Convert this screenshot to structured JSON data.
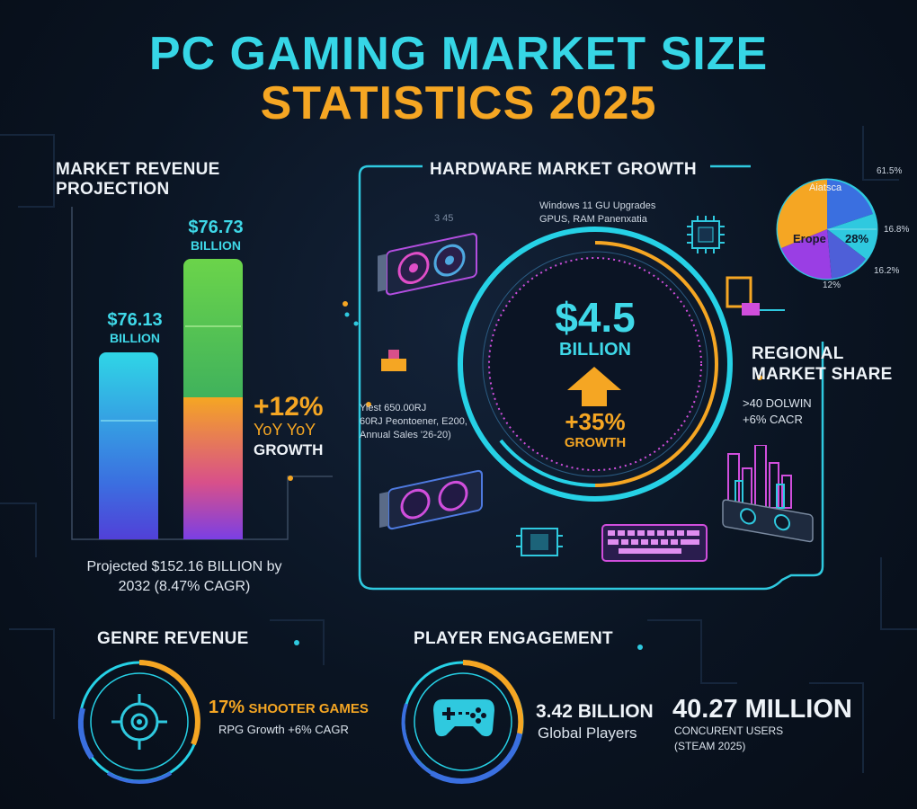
{
  "title": {
    "line1": "PC GAMING MARKET SIZE",
    "line2": "STATISTICS 2025"
  },
  "market_revenue": {
    "heading_line1": "MARKET REVENUE",
    "heading_line2": "PROJECTION",
    "bar1_value": "$76.13",
    "bar1_unit": "BILLION",
    "bar2_value": "$76.73",
    "bar2_unit": "BILLION",
    "growth_pct": "+12%",
    "growth_yoy": "YoY YoY",
    "growth_word": "GROWTH",
    "projection_line1": "Projected $152.16 BILLION by",
    "projection_line2": "2032 (8.47% CAGR)"
  },
  "chart_data": {
    "type": "bar",
    "categories": [
      "",
      ""
    ],
    "values": [
      76.13,
      76.73
    ],
    "title": "MARKET REVENUE PROJECTION",
    "xlabel": "",
    "ylabel": ""
  },
  "hardware": {
    "heading": "HARDWARE MARKET GROWTH",
    "note_line1": "Windows 11 GU Upgrades",
    "note_line2": "GPUS, RAM Panenxatia",
    "side_line1": "Yiest 650.00RJ",
    "side_line2": "60RJ Peontoener, E200,",
    "side_line3": "Annual Sales '26-20)",
    "center_value": "$4.5",
    "center_unit": "BILLION",
    "center_growth": "+35%",
    "center_growth_word": "GROWTH",
    "tiny_tag": "3 45"
  },
  "regional": {
    "heading_line1": "REGIONAL",
    "heading_line2": "MARKET SHARE",
    "sub_line1": ">40 DOLWIN",
    "sub_line2": "+6% CACR",
    "pie_labels": {
      "top": "Aiatsca",
      "europe": "Erope",
      "pct_inner": "28%",
      "pct_tr": "61.5%",
      "pct_r": "16.8%",
      "pct_br": "16.2%",
      "pct_b": "12%"
    }
  },
  "genre": {
    "heading": "GENRE REVENUE",
    "pct": "17%",
    "label": "SHOOTER GAMES",
    "sub": "RPG Growth +6% CAGR"
  },
  "engagement": {
    "heading": "PLAYER ENGAGEMENT",
    "players_value": "3.42 BILLION",
    "players_label": "Global Players",
    "concurrent_value": "40.27 MILLION",
    "concurrent_label1": "CONCURENT USERS",
    "concurrent_label2": "(STEAM 2025)"
  },
  "colors": {
    "cyan": "#3fd8e8",
    "orange": "#f5a623",
    "background": "#0a1422",
    "purple": "#7b3fe4",
    "green": "#6bd44a"
  },
  "icons": [
    "gpu-icon",
    "cpu-chip-icon",
    "keyboard-icon",
    "crosshair-icon",
    "gamepad-icon",
    "up-arrow-icon",
    "city-icon",
    "pie-chart-icon"
  ]
}
